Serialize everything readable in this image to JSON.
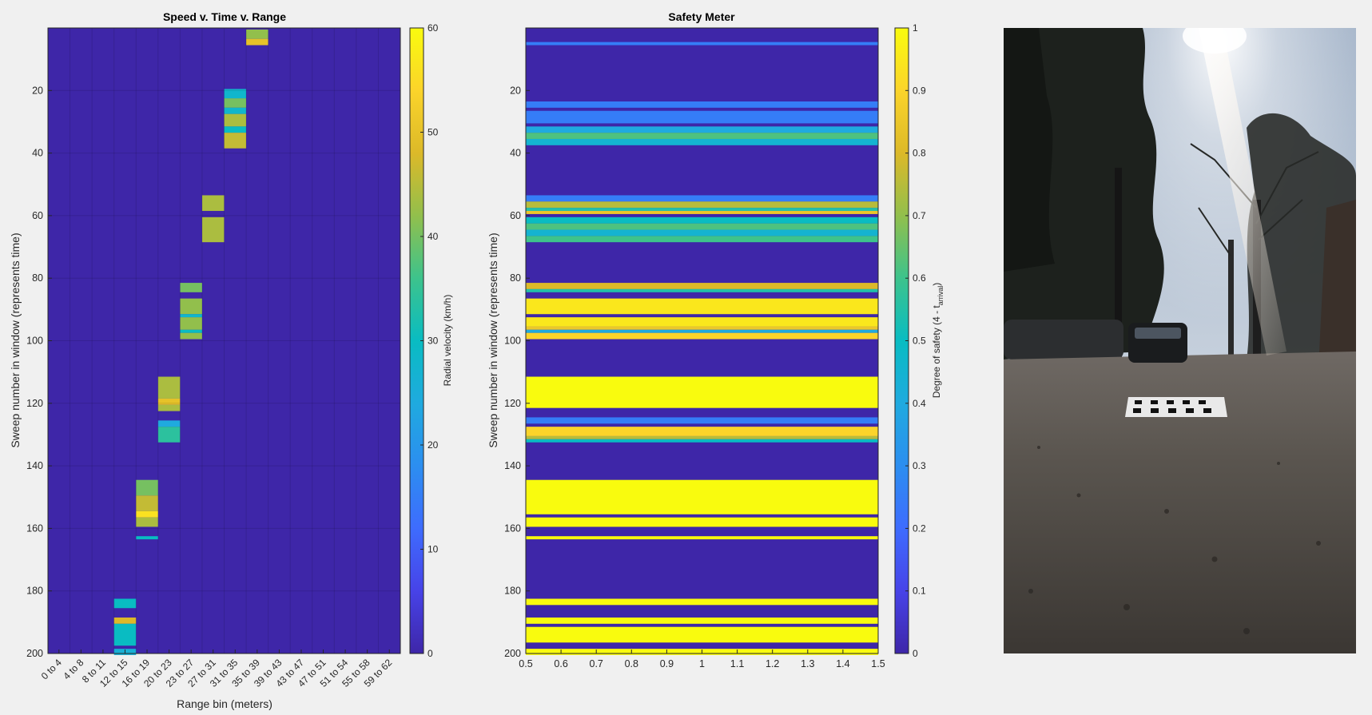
{
  "chart_data": [
    {
      "type": "heatmap",
      "title": "Speed v. Time v. Range",
      "xlabel": "Range bin (meters)",
      "ylabel": "Sweep number in window (represents time)",
      "x_tick_labels": [
        "0 to 4",
        "4 to 8",
        "8 to 11",
        "12 to 15",
        "16 to 19",
        "20 to 23",
        "23 to 27",
        "27 to 31",
        "31 to 35",
        "35 to 39",
        "39 to 43",
        "43 to 47",
        "47 to 51",
        "51 to 54",
        "55 to 58",
        "59 to 62"
      ],
      "y_ticks": [
        20,
        40,
        60,
        80,
        100,
        120,
        140,
        160,
        180,
        200
      ],
      "ylim": [
        1,
        200
      ],
      "colorbar": {
        "label": "Radial velocity (km/h)",
        "ticks": [
          0,
          10,
          20,
          30,
          40,
          50,
          60
        ],
        "range": [
          0,
          60
        ]
      },
      "background_value": 0,
      "cells": [
        {
          "bin": 9,
          "sweeps": [
            1,
            3
          ],
          "value": 42
        },
        {
          "bin": 9,
          "sweeps": [
            4,
            5
          ],
          "value": 50
        },
        {
          "bin": 8,
          "sweeps": [
            20,
            22
          ],
          "value": 28
        },
        {
          "bin": 8,
          "sweeps": [
            23,
            25
          ],
          "value": 40
        },
        {
          "bin": 8,
          "sweeps": [
            26,
            27
          ],
          "value": 28
        },
        {
          "bin": 8,
          "sweeps": [
            28,
            31
          ],
          "value": 44
        },
        {
          "bin": 8,
          "sweeps": [
            32,
            33
          ],
          "value": 30
        },
        {
          "bin": 8,
          "sweeps": [
            34,
            38
          ],
          "value": 46
        },
        {
          "bin": 7,
          "sweeps": [
            54,
            58
          ],
          "value": 44
        },
        {
          "bin": 7,
          "sweeps": [
            61,
            68
          ],
          "value": 44
        },
        {
          "bin": 6,
          "sweeps": [
            82,
            84
          ],
          "value": 40
        },
        {
          "bin": 6,
          "sweeps": [
            87,
            91
          ],
          "value": 42
        },
        {
          "bin": 6,
          "sweeps": [
            92,
            92
          ],
          "value": 28
        },
        {
          "bin": 6,
          "sweeps": [
            93,
            96
          ],
          "value": 42
        },
        {
          "bin": 6,
          "sweeps": [
            97,
            97
          ],
          "value": 30
        },
        {
          "bin": 6,
          "sweeps": [
            98,
            99
          ],
          "value": 42
        },
        {
          "bin": 5,
          "sweeps": [
            112,
            118
          ],
          "value": 44
        },
        {
          "bin": 5,
          "sweeps": [
            119,
            120
          ],
          "value": 50
        },
        {
          "bin": 5,
          "sweeps": [
            121,
            122
          ],
          "value": 44
        },
        {
          "bin": 5,
          "sweeps": [
            126,
            127
          ],
          "value": 24
        },
        {
          "bin": 5,
          "sweeps": [
            128,
            132
          ],
          "value": 34
        },
        {
          "bin": 4,
          "sweeps": [
            145,
            149
          ],
          "value": 40
        },
        {
          "bin": 4,
          "sweeps": [
            150,
            154
          ],
          "value": 46
        },
        {
          "bin": 4,
          "sweeps": [
            155,
            156
          ],
          "value": 56
        },
        {
          "bin": 4,
          "sweeps": [
            157,
            159
          ],
          "value": 44
        },
        {
          "bin": 4,
          "sweeps": [
            163,
            163
          ],
          "value": 30
        },
        {
          "bin": 3,
          "sweeps": [
            183,
            185
          ],
          "value": 30
        },
        {
          "bin": 3,
          "sweeps": [
            189,
            190
          ],
          "value": 48
        },
        {
          "bin": 3,
          "sweeps": [
            191,
            197
          ],
          "value": 30
        },
        {
          "bin": 3,
          "sweeps": [
            199,
            200
          ],
          "value": 26
        }
      ]
    },
    {
      "type": "heatmap",
      "title": "Safety Meter",
      "xlabel": "",
      "ylabel": "Sweep number in window  (represents time)",
      "x_ticks": [
        0.5,
        0.6,
        0.7,
        0.8,
        0.9,
        1,
        1.1,
        1.2,
        1.3,
        1.4,
        1.5
      ],
      "x_tick_labels": [
        "0.5",
        "0.6",
        "0.7",
        "0.8",
        "0.9",
        "1",
        "1.1",
        "1.2",
        "1.3",
        "1.4",
        "1.5"
      ],
      "xlim": [
        0.5,
        1.5
      ],
      "y_ticks": [
        20,
        40,
        60,
        80,
        100,
        120,
        140,
        160,
        180,
        200
      ],
      "ylim": [
        1,
        200
      ],
      "colorbar": {
        "label_main": "Degree of safety (4 - t",
        "label_sub": "arrival",
        "label_end": ")",
        "ticks": [
          0,
          0.1,
          0.2,
          0.3,
          0.4,
          0.5,
          0.6,
          0.7,
          0.8,
          0.9,
          1
        ],
        "range": [
          0,
          1
        ]
      },
      "background_value": 0,
      "bands": [
        {
          "sweeps": [
            5,
            5
          ],
          "value": 0.25
        },
        {
          "sweeps": [
            24,
            25
          ],
          "value": 0.25
        },
        {
          "sweeps": [
            27,
            30
          ],
          "value": 0.25
        },
        {
          "sweeps": [
            32,
            33
          ],
          "value": 0.4
        },
        {
          "sweeps": [
            34,
            35
          ],
          "value": 0.62
        },
        {
          "sweeps": [
            36,
            37
          ],
          "value": 0.45
        },
        {
          "sweeps": [
            54,
            55
          ],
          "value": 0.25
        },
        {
          "sweeps": [
            56,
            57
          ],
          "value": 0.75
        },
        {
          "sweeps": [
            58,
            58
          ],
          "value": 0.55
        },
        {
          "sweeps": [
            59,
            59
          ],
          "value": 0.85
        },
        {
          "sweeps": [
            61,
            62
          ],
          "value": 0.5
        },
        {
          "sweeps": [
            63,
            64
          ],
          "value": 0.62
        },
        {
          "sweeps": [
            65,
            66
          ],
          "value": 0.45
        },
        {
          "sweeps": [
            67,
            68
          ],
          "value": 0.6
        },
        {
          "sweeps": [
            82,
            83
          ],
          "value": 0.8
        },
        {
          "sweeps": [
            84,
            84
          ],
          "value": 0.55
        },
        {
          "sweeps": [
            87,
            91
          ],
          "value": 0.95
        },
        {
          "sweeps": [
            93,
            95
          ],
          "value": 0.95
        },
        {
          "sweeps": [
            96,
            96
          ],
          "value": 0.85
        },
        {
          "sweeps": [
            97,
            97
          ],
          "value": 0.4
        },
        {
          "sweeps": [
            98,
            99
          ],
          "value": 0.9
        },
        {
          "sweeps": [
            112,
            121
          ],
          "value": 1
        },
        {
          "sweeps": [
            125,
            126
          ],
          "value": 0.25
        },
        {
          "sweeps": [
            128,
            130
          ],
          "value": 0.9
        },
        {
          "sweeps": [
            131,
            131
          ],
          "value": 0.75
        },
        {
          "sweeps": [
            132,
            132
          ],
          "value": 0.5
        },
        {
          "sweeps": [
            145,
            155
          ],
          "value": 1
        },
        {
          "sweeps": [
            157,
            159
          ],
          "value": 1
        },
        {
          "sweeps": [
            163,
            163
          ],
          "value": 1
        },
        {
          "sweeps": [
            183,
            184
          ],
          "value": 1
        },
        {
          "sweeps": [
            189,
            190
          ],
          "value": 1
        },
        {
          "sweeps": [
            192,
            196
          ],
          "value": 1
        },
        {
          "sweeps": [
            199,
            200
          ],
          "value": 1
        }
      ]
    }
  ]
}
